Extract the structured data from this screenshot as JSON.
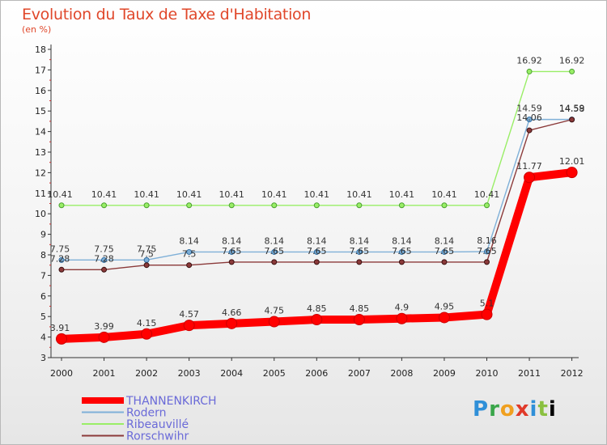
{
  "chart_data": {
    "type": "line",
    "title": "Evolution du Taux de Taxe d'Habitation",
    "subtitle": "(en %)",
    "xlabel": "",
    "ylabel": "",
    "x": [
      "2000",
      "2001",
      "2002",
      "2003",
      "2004",
      "2005",
      "2006",
      "2007",
      "2008",
      "2009",
      "2010",
      "2011",
      "2012"
    ],
    "yticks": [
      3,
      4,
      5,
      6,
      7,
      8,
      9,
      10,
      11,
      12,
      13,
      14,
      15,
      16,
      17,
      18
    ],
    "ylim": [
      3,
      18
    ],
    "legend_position": "bottom-left",
    "series": [
      {
        "name": "THANNENKIRCH",
        "color": "#ff0000",
        "values": [
          3.91,
          3.99,
          4.15,
          4.57,
          4.66,
          4.75,
          4.85,
          4.85,
          4.9,
          4.95,
          5.1,
          11.77,
          12.01
        ],
        "labels": [
          "3.91",
          "3.99",
          "4.15",
          "4.57",
          "4.66",
          "4.75",
          "4.85",
          "4.85",
          "4.9",
          "4.95",
          "5.1",
          "11.77",
          "12.01"
        ]
      },
      {
        "name": "Rodern",
        "color": "#7fb0d8",
        "values": [
          7.75,
          7.75,
          7.75,
          8.14,
          8.14,
          8.14,
          8.14,
          8.14,
          8.14,
          8.14,
          8.16,
          14.59,
          14.59
        ],
        "labels": [
          "7.75",
          "7.75",
          "7.75",
          "8.14",
          "8.14",
          "8.14",
          "8.14",
          "8.14",
          "8.14",
          "8.14",
          "8.16",
          "14.59",
          "14.59"
        ]
      },
      {
        "name": "Ribeauvillé",
        "color": "#99ee66",
        "values": [
          10.41,
          10.41,
          10.41,
          10.41,
          10.41,
          10.41,
          10.41,
          10.41,
          10.41,
          10.41,
          10.41,
          16.92,
          16.92
        ],
        "labels": [
          "10.41",
          "10.41",
          "10.41",
          "10.41",
          "10.41",
          "10.41",
          "10.41",
          "10.41",
          "10.41",
          "10.41",
          "10.41",
          "16.92",
          "16.92"
        ]
      },
      {
        "name": "Rorschwihr",
        "color": "#8b3a3a",
        "values": [
          7.28,
          7.28,
          7.5,
          7.5,
          7.65,
          7.65,
          7.65,
          7.65,
          7.65,
          7.65,
          7.65,
          14.06,
          14.58
        ],
        "labels": [
          "7.28",
          "7.28",
          "7.5",
          "7.5",
          "7.65",
          "7.65",
          "7.65",
          "7.65",
          "7.65",
          "7.65",
          "7.65",
          "14.06",
          "14.58"
        ]
      }
    ]
  },
  "logo": {
    "letters": [
      "P",
      "r",
      "o",
      "x",
      "i",
      "t",
      "i"
    ]
  }
}
